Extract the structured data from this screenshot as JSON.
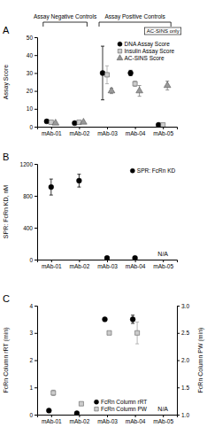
{
  "chart_data": [
    {
      "type": "scatter",
      "title": "A",
      "categories": [
        "mAb-01",
        "mAb-02",
        "mAb-03",
        "mAb-04",
        "mAb-05"
      ],
      "y_label": "Assay Score",
      "ylim": [
        0,
        50
      ],
      "yticks": [
        0,
        10,
        20,
        30,
        40,
        50
      ],
      "legend": "top-right",
      "annotations": [
        "Assay Negative Controls",
        "Assay Positive Controls",
        "AC-SINS only"
      ],
      "series": [
        {
          "name": "DNA Assay Score",
          "color": "#000000",
          "marker": "circle",
          "values": [
            3,
            2,
            30,
            30,
            1
          ],
          "errors": [
            null,
            null,
            15,
            1.5,
            null
          ]
        },
        {
          "name": "Insulin Assay Score",
          "color": "#cccccc",
          "marker": "square",
          "values": [
            2.5,
            2.5,
            29,
            24,
            1
          ],
          "errors": [
            null,
            null,
            5,
            1.5,
            null
          ]
        },
        {
          "name": "AC-SINS Score",
          "color": "#999999",
          "marker": "triangle",
          "values": [
            2,
            2.5,
            20,
            20,
            23
          ],
          "errors": [
            null,
            null,
            1.5,
            3,
            2.5
          ]
        }
      ]
    },
    {
      "type": "scatter",
      "title": "B",
      "categories": [
        "mAb-01",
        "mAb-02",
        "mAb-03",
        "mAb-04",
        "mAb-05"
      ],
      "y_label": "SPR: FcRn KD, nM",
      "ylim": [
        0,
        1200
      ],
      "yticks": [
        0,
        400,
        800,
        1200
      ],
      "legend": "top-right",
      "annotations": [
        "N/A"
      ],
      "series": [
        {
          "name": "SPR: FcRn KD",
          "color": "#000000",
          "marker": "circle",
          "values": [
            910,
            990,
            20,
            20,
            null
          ],
          "errors": [
            100,
            80,
            null,
            null,
            null
          ]
        }
      ]
    },
    {
      "type": "scatter",
      "title": "C",
      "categories": [
        "mAb-01",
        "mAb-02",
        "mAb-03",
        "mAb-04",
        "mAb-05"
      ],
      "y_label": "FcRn Column rRT (min)",
      "y2_label": "FcRn Column PW (min)",
      "ylim": [
        0,
        4
      ],
      "yticks": [
        0,
        1,
        2,
        3,
        4
      ],
      "y2lim": [
        1,
        3
      ],
      "y2ticks": [
        {
          "value": 1,
          "label": "1.0"
        },
        {
          "value": 1.5,
          "label": "1.5"
        },
        {
          "value": 2,
          "label": "2.0"
        },
        {
          "value": 2.5,
          "label": "2.5"
        },
        {
          "value": 3,
          "label": "3.0"
        }
      ],
      "legend": "bottom",
      "annotations": [
        "N/A"
      ],
      "series": [
        {
          "name": "FcRn Column rRT",
          "color": "#000000",
          "marker": "circle",
          "values": [
            0.15,
            0.05,
            3.5,
            3.5,
            null
          ],
          "errors": [
            null,
            null,
            null,
            0.15,
            null
          ]
        },
        {
          "name": "FcRn Column PW",
          "color": "#cccccc",
          "marker": "square",
          "axis": "y2",
          "values": [
            1.4,
            1.2,
            2.5,
            2.5,
            null
          ],
          "errors": [
            0.05,
            null,
            null,
            0.2,
            null
          ]
        }
      ]
    }
  ]
}
